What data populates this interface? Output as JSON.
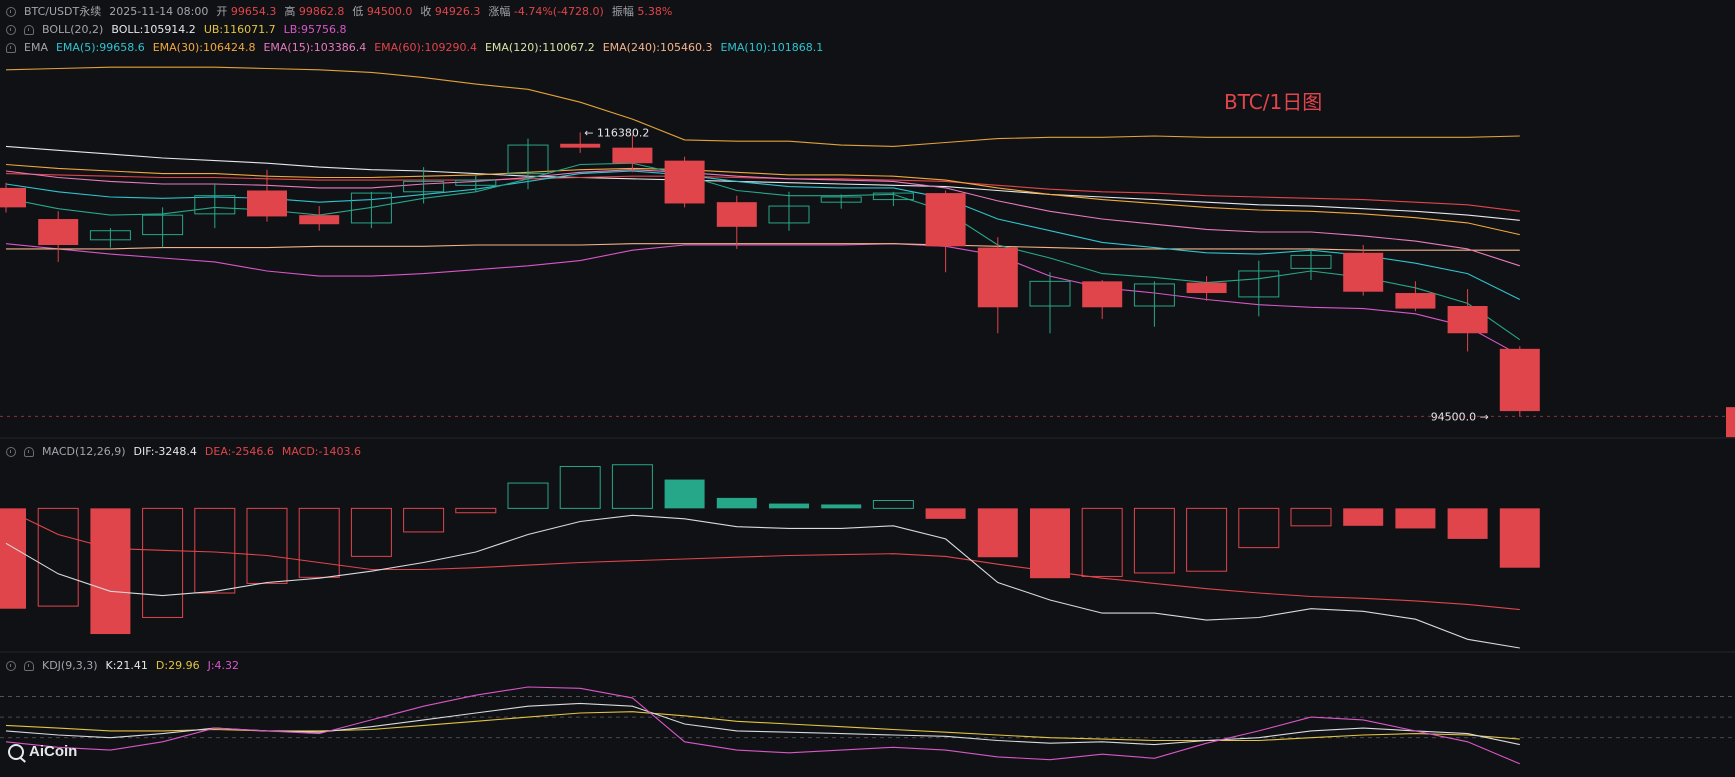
{
  "colors": {
    "bg": "#101114",
    "up": "#26a78a",
    "down": "#e0454c",
    "grid": "#1f2126",
    "text": "#c8c9cc"
  },
  "header": {
    "symbol": "BTC/USDT永续",
    "datetime": "2025-11-14 08:00",
    "open_label": "开",
    "open": "99654.3",
    "high_label": "高",
    "high": "99862.8",
    "low_label": "低",
    "low": "94500.0",
    "close_label": "收",
    "close": "94926.3",
    "change_label": "涨幅",
    "change": "-4.74%(-4728.0)",
    "amp_label": "振幅",
    "amp": "5.38%"
  },
  "boll": {
    "name": "BOLL(20,2)",
    "mid": "BOLL:105914.2",
    "ub": "UB:116071.7",
    "lb": "LB:95756.8"
  },
  "ema": {
    "name": "EMA",
    "e5": "EMA(5):99658.6",
    "e30": "EMA(30):106424.8",
    "e15": "EMA(15):103386.4",
    "e60": "EMA(60):109290.4",
    "e120": "EMA(120):110067.2",
    "e240": "EMA(240):105460.3",
    "e10": "EMA(10):101868.1"
  },
  "macd": {
    "name": "MACD(12,26,9)",
    "dif": "DIF:-3248.4",
    "dea": "DEA:-2546.6",
    "macd": "MACD:-1403.6"
  },
  "kdj": {
    "name": "KDJ(9,3,3)",
    "k": "K:21.41",
    "d": "D:29.96",
    "j": "J:4.32"
  },
  "overlay_title": "BTC/1日图",
  "logo_text": "AiCoin",
  "chart_data": {
    "type": "candlestick",
    "price_range": [
      93600,
      121800
    ],
    "max_label": "← 116380.2",
    "min_label": "94500.0 →",
    "ohlc": [
      {
        "o": 112100,
        "h": 112500,
        "l": 110200,
        "c": 110600
      },
      {
        "o": 109700,
        "h": 110300,
        "l": 106400,
        "c": 107700
      },
      {
        "o": 108100,
        "h": 109000,
        "l": 107500,
        "c": 108800
      },
      {
        "o": 108500,
        "h": 110600,
        "l": 107500,
        "c": 110000
      },
      {
        "o": 110100,
        "h": 112400,
        "l": 109000,
        "c": 111500
      },
      {
        "o": 111900,
        "h": 113500,
        "l": 109500,
        "c": 109900
      },
      {
        "o": 110000,
        "h": 110700,
        "l": 108800,
        "c": 109300
      },
      {
        "o": 109400,
        "h": 111800,
        "l": 109000,
        "c": 111700
      },
      {
        "o": 111800,
        "h": 113700,
        "l": 110900,
        "c": 112600
      },
      {
        "o": 112300,
        "h": 113100,
        "l": 111800,
        "c": 112700
      },
      {
        "o": 113200,
        "h": 115900,
        "l": 112000,
        "c": 115400
      },
      {
        "o": 115500,
        "h": 116380,
        "l": 114800,
        "c": 115200
      },
      {
        "o": 115200,
        "h": 116200,
        "l": 113300,
        "c": 114000
      },
      {
        "o": 114200,
        "h": 114500,
        "l": 110600,
        "c": 110900
      },
      {
        "o": 111000,
        "h": 111500,
        "l": 107400,
        "c": 109100
      },
      {
        "o": 109400,
        "h": 111800,
        "l": 108800,
        "c": 110700
      },
      {
        "o": 111000,
        "h": 111600,
        "l": 110500,
        "c": 111400
      },
      {
        "o": 111200,
        "h": 111800,
        "l": 110700,
        "c": 111700
      },
      {
        "o": 111700,
        "h": 111900,
        "l": 105600,
        "c": 107600
      },
      {
        "o": 107500,
        "h": 108300,
        "l": 100900,
        "c": 102900
      },
      {
        "o": 103000,
        "h": 105600,
        "l": 100900,
        "c": 104900
      },
      {
        "o": 104900,
        "h": 105000,
        "l": 102000,
        "c": 102900
      },
      {
        "o": 103000,
        "h": 104900,
        "l": 101400,
        "c": 104700
      },
      {
        "o": 104800,
        "h": 105300,
        "l": 103400,
        "c": 104000
      },
      {
        "o": 103700,
        "h": 106500,
        "l": 102200,
        "c": 105700
      },
      {
        "o": 105900,
        "h": 107400,
        "l": 105000,
        "c": 106900
      },
      {
        "o": 107100,
        "h": 107700,
        "l": 103800,
        "c": 104100
      },
      {
        "o": 104000,
        "h": 104900,
        "l": 102600,
        "c": 102800
      },
      {
        "o": 103000,
        "h": 104300,
        "l": 99500,
        "c": 100900
      },
      {
        "o": 99700,
        "h": 99900,
        "l": 94500,
        "c": 94900
      }
    ],
    "ema5": [
      111300,
      110500,
      110000,
      110100,
      110600,
      110400,
      110000,
      110600,
      111300,
      111800,
      112800,
      113900,
      114000,
      113100,
      111900,
      111500,
      111500,
      111600,
      110300,
      107700,
      106700,
      105500,
      105200,
      104800,
      105100,
      105700,
      105200,
      104400,
      103200,
      100400
    ],
    "ema10": [
      112400,
      111800,
      111400,
      111300,
      111400,
      111300,
      111000,
      111200,
      111600,
      112000,
      112600,
      113200,
      113400,
      113100,
      112600,
      112200,
      112100,
      112100,
      111300,
      109700,
      108800,
      107900,
      107500,
      107100,
      107000,
      107300,
      106900,
      106300,
      105500,
      103500
    ],
    "ema15": [
      113400,
      112900,
      112600,
      112400,
      112400,
      112300,
      112100,
      112100,
      112400,
      112600,
      112900,
      113300,
      113500,
      113300,
      113000,
      112800,
      112700,
      112600,
      112100,
      111100,
      110300,
      109700,
      109300,
      108900,
      108700,
      108700,
      108400,
      108000,
      107400,
      106100
    ],
    "ema30": [
      113900,
      113600,
      113400,
      113200,
      113200,
      113000,
      112900,
      112900,
      113000,
      113100,
      113300,
      113500,
      113600,
      113500,
      113300,
      113100,
      113100,
      113000,
      112700,
      112100,
      111600,
      111200,
      110900,
      110600,
      110400,
      110300,
      110100,
      109800,
      109400,
      108500
    ],
    "ema60": [
      113200,
      113100,
      113000,
      112900,
      112900,
      112800,
      112700,
      112700,
      112700,
      112700,
      112800,
      112900,
      113000,
      113000,
      112900,
      112800,
      112800,
      112700,
      112600,
      112300,
      112000,
      111800,
      111700,
      111500,
      111400,
      111300,
      111200,
      111000,
      110800,
      110300
    ],
    "ema120": [
      115300,
      115000,
      114700,
      114400,
      114200,
      114000,
      113700,
      113500,
      113400,
      113200,
      113000,
      112900,
      112800,
      112700,
      112600,
      112500,
      112400,
      112300,
      112200,
      111900,
      111600,
      111400,
      111200,
      111000,
      110800,
      110700,
      110500,
      110300,
      110000,
      109600
    ],
    "ema240": [
      107400,
      107400,
      107400,
      107500,
      107500,
      107500,
      107600,
      107600,
      107600,
      107700,
      107700,
      107700,
      107800,
      107800,
      107800,
      107800,
      107800,
      107800,
      107700,
      107600,
      107500,
      107400,
      107400,
      107400,
      107400,
      107400,
      107300,
      107300,
      107300,
      107300
    ],
    "boll_ub": [
      121200,
      121300,
      121400,
      121400,
      121400,
      121300,
      121200,
      121000,
      120600,
      120100,
      119700,
      118700,
      117400,
      115800,
      115700,
      115700,
      115400,
      115300,
      115600,
      115900,
      116000,
      116000,
      116100,
      116000,
      116000,
      116000,
      116000,
      116000,
      116000,
      116100
    ],
    "boll_lb": [
      107800,
      107400,
      107000,
      106700,
      106400,
      105700,
      105300,
      105300,
      105500,
      105800,
      106100,
      106500,
      107300,
      107700,
      107700,
      107700,
      107700,
      107800,
      107600,
      106900,
      105300,
      104400,
      104000,
      103500,
      103100,
      102900,
      102800,
      102400,
      101400,
      99200
    ],
    "macd": {
      "hist": [
        -1150,
        -1120,
        -1440,
        -1250,
        -970,
        -860,
        -790,
        -550,
        -270,
        -50,
        290,
        480,
        500,
        330,
        120,
        55,
        45,
        90,
        -120,
        -560,
        -800,
        -780,
        -740,
        -720,
        -450,
        -200,
        -200,
        -230,
        -350,
        -680
      ],
      "dif": [
        -400,
        -750,
        -950,
        -1000,
        -950,
        -850,
        -800,
        -720,
        -620,
        -500,
        -300,
        -150,
        -80,
        -120,
        -210,
        -230,
        -230,
        -200,
        -350,
        -850,
        -1050,
        -1200,
        -1200,
        -1280,
        -1250,
        -1150,
        -1180,
        -1270,
        -1500,
        -1600
      ],
      "dea": [
        -10,
        -300,
        -460,
        -480,
        -500,
        -540,
        -620,
        -700,
        -700,
        -680,
        -650,
        -620,
        -600,
        -580,
        -560,
        -540,
        -530,
        -520,
        -550,
        -640,
        -720,
        -800,
        -860,
        -920,
        -970,
        -1010,
        -1030,
        -1060,
        -1100,
        -1160
      ],
      "range": [
        -1600,
        600
      ]
    },
    "kdj": {
      "k": [
        20,
        17,
        15,
        18,
        22,
        20,
        19,
        23,
        28,
        33,
        38,
        40,
        38,
        25,
        20,
        19,
        18,
        17,
        16,
        13,
        11,
        12,
        10,
        13,
        15,
        20,
        22,
        20,
        18,
        10
      ],
      "d": [
        24,
        22,
        20,
        20,
        21,
        20,
        20,
        21,
        24,
        27,
        30,
        33,
        34,
        31,
        27,
        25,
        23,
        21,
        19,
        17,
        15,
        14,
        13,
        13,
        13,
        15,
        17,
        18,
        17,
        14
      ],
      "j": [
        12,
        8,
        6,
        12,
        22,
        20,
        18,
        28,
        38,
        46,
        52,
        51,
        44,
        12,
        6,
        4,
        6,
        8,
        6,
        1,
        -1,
        3,
        0,
        11,
        20,
        30,
        28,
        20,
        12,
        -4
      ],
      "range": [
        -10,
        60
      ],
      "levels": [
        15,
        30,
        45
      ]
    }
  }
}
